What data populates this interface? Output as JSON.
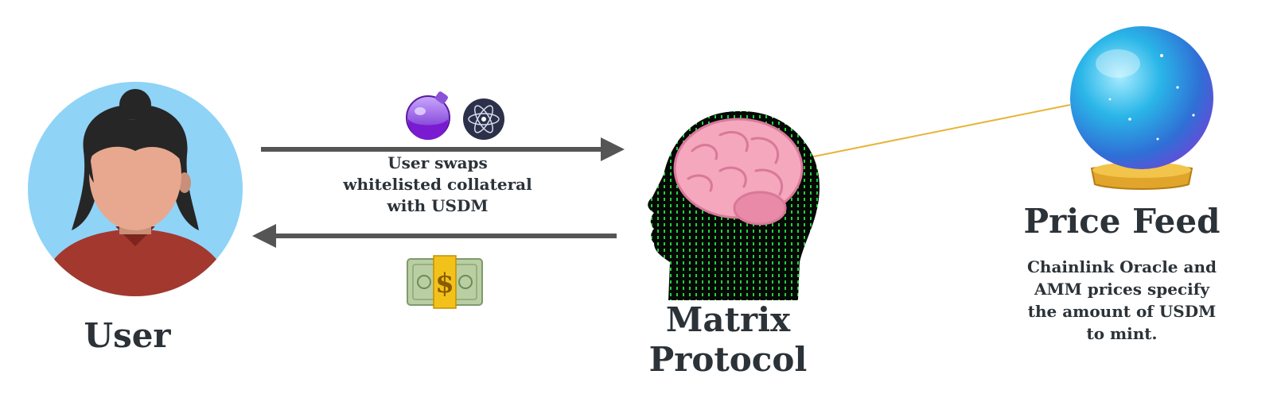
{
  "user": {
    "label": "User"
  },
  "matrix": {
    "label_line1": "Matrix",
    "label_line2": "Protocol"
  },
  "price_feed": {
    "title": "Price Feed",
    "desc_line1": "Chainlink Oracle and",
    "desc_line2": "AMM prices specify",
    "desc_line3": "the amount of USDM",
    "desc_line4": "to mint."
  },
  "swap": {
    "line1": "User swaps",
    "line2": "whitelisted collateral",
    "line3": "with USDM"
  },
  "icons": {
    "user": "user-avatar-icon",
    "potion": "potion-icon",
    "atom": "atom-icon",
    "cash": "dollar-bill-icon",
    "head": "matrix-head-icon",
    "brain": "brain-icon",
    "crystal_ball": "crystal-ball-icon"
  },
  "colors": {
    "avatar_bg": "#8fd3f7",
    "shirt": "#a3382f",
    "skin": "#e7a88f",
    "hair": "#262626",
    "arrow": "#555555",
    "oracle_line": "#e8b43a",
    "matrix_green": "#1fd23a",
    "text": "#2b3238"
  }
}
